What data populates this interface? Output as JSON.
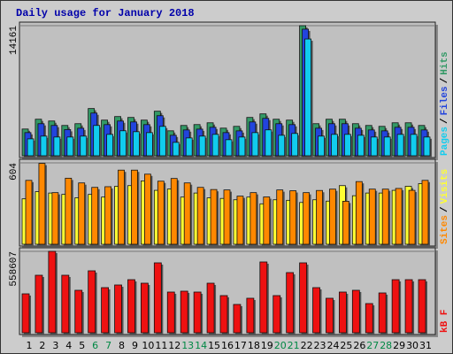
{
  "title": "Daily usage for January 2018",
  "legend_separator": "/",
  "chart_data": [
    {
      "type": "bar",
      "ylim": [
        0,
        14161
      ],
      "yticks": [
        14161
      ],
      "grid": true,
      "series": [
        {
          "name": "Hits",
          "color": "#339966",
          "values": [
            2910,
            3977,
            3783,
            3298,
            3492,
            5141,
            3880,
            4268,
            4171,
            3880,
            4850,
            2716,
            3298,
            3395,
            3589,
            3007,
            3201,
            4171,
            4559,
            3977,
            3880,
            14161,
            3492,
            3977,
            3977,
            3492,
            3298,
            3201,
            3589,
            3589,
            3298
          ]
        },
        {
          "name": "Files",
          "color": "#2244dd",
          "values": [
            2520,
            3490,
            3300,
            2850,
            3000,
            4650,
            3390,
            3780,
            3680,
            3390,
            4360,
            2230,
            2810,
            2900,
            3100,
            2520,
            2710,
            3680,
            4070,
            3490,
            3390,
            13780,
            3000,
            3490,
            3490,
            3000,
            2810,
            2710,
            3100,
            3100,
            2810
          ]
        },
        {
          "name": "Pages",
          "color": "#11ccee",
          "values": [
            1840,
            2140,
            2040,
            2040,
            2140,
            3300,
            2330,
            2720,
            2620,
            2520,
            3200,
            1460,
            1940,
            2140,
            2330,
            1750,
            2040,
            2520,
            2820,
            2230,
            2430,
            12710,
            2140,
            2330,
            2330,
            2230,
            2040,
            2040,
            2330,
            2330,
            2040
          ]
        }
      ],
      "legend_order": [
        2,
        1,
        0
      ]
    },
    {
      "type": "bar",
      "ylim": [
        0,
        604
      ],
      "yticks": [
        604
      ],
      "grid": true,
      "series": [
        {
          "name": "Visits",
          "color": "#ffff33",
          "values": [
            337,
            390,
            380,
            370,
            345,
            370,
            350,
            430,
            435,
            470,
            400,
            410,
            350,
            380,
            344,
            340,
            330,
            350,
            300,
            330,
            326,
            310,
            330,
            320,
            435,
            360,
            380,
            380,
            400,
            430,
            450
          ]
        },
        {
          "name": "Sites",
          "color": "#ff8800",
          "values": [
            474,
            600,
            383,
            490,
            455,
            422,
            427,
            550,
            550,
            520,
            468,
            488,
            455,
            422,
            406,
            403,
            357,
            383,
            351,
            403,
            397,
            383,
            399,
            409,
            319,
            465,
            409,
            409,
            414,
            400,
            474
          ]
        }
      ],
      "legend_order": [
        1,
        0
      ]
    },
    {
      "type": "bar",
      "ylim": [
        0,
        558607
      ],
      "yticks": [
        558607
      ],
      "grid": true,
      "series": [
        {
          "name": "kB F",
          "color": "#ee1111",
          "values": [
            267168,
            394680,
            558607,
            394680,
            291456,
            425040,
            309672,
            327888,
            364320,
            340032,
            479688,
            279312,
            285384,
            279312,
            340032,
            255024,
            194304,
            236808,
            485760,
            255024,
            412896,
            479688,
            309672,
            236808,
            279312,
            291456,
            200376,
            273240,
            364320,
            364320,
            364320
          ]
        }
      ],
      "legend_order": [
        0
      ],
      "categories": [
        "1",
        "2",
        "3",
        "4",
        "5",
        "6",
        "7",
        "8",
        "9",
        "10",
        "11",
        "12",
        "13",
        "14",
        "15",
        "16",
        "17",
        "18",
        "19",
        "20",
        "21",
        "22",
        "23",
        "24",
        "25",
        "26",
        "27",
        "28",
        "29",
        "30",
        "31"
      ],
      "category_colors": [
        "#000000",
        "#000000",
        "#000000",
        "#000000",
        "#000000",
        "#008844",
        "#008844",
        "#000000",
        "#000000",
        "#000000",
        "#000000",
        "#000000",
        "#008844",
        "#008844",
        "#000000",
        "#000000",
        "#000000",
        "#000000",
        "#000000",
        "#008844",
        "#008844",
        "#000000",
        "#000000",
        "#000000",
        "#000000",
        "#000000",
        "#008844",
        "#008844",
        "#000000",
        "#000000",
        "#000000"
      ]
    }
  ]
}
